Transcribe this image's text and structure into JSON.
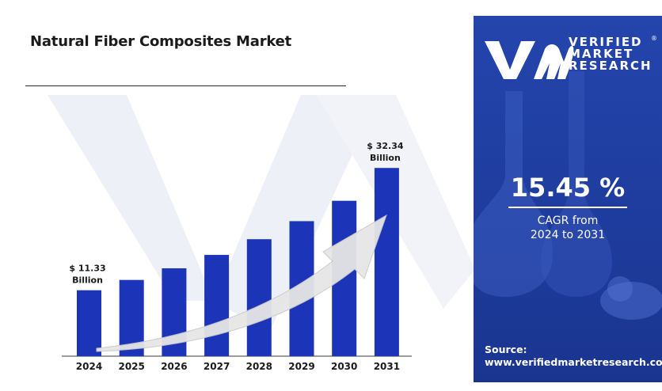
{
  "title": "Natural Fiber Composites Market",
  "brand": {
    "line1": "VERIFIED",
    "line2": "MARKET",
    "line3": "RESEARCH",
    "registered": "®"
  },
  "cagr": {
    "value": "15.45 %",
    "label_line1": "CAGR from",
    "label_line2": "2024 to 2031"
  },
  "source": {
    "label": "Source:",
    "url": "www.verifiedmarketresearch.com"
  },
  "colors": {
    "bar": "#1c35b8",
    "panel": "#1f3ea0",
    "arrow": "#e6e6e6"
  },
  "chart_data": {
    "type": "bar",
    "categories": [
      "2024",
      "2025",
      "2026",
      "2027",
      "2028",
      "2029",
      "2030",
      "2031"
    ],
    "values": [
      11.33,
      13.1,
      15.1,
      17.4,
      20.1,
      23.2,
      26.7,
      32.34
    ],
    "data_labels": [
      {
        "index": 0,
        "line1": "$ 11.33",
        "line2": "Billion"
      },
      {
        "index": 7,
        "line1": "$ 32.34",
        "line2": "Billion"
      }
    ],
    "unit": "Billion USD",
    "ylim": [
      0,
      34
    ],
    "grid": false,
    "legend": "none",
    "trend_arrow": true
  }
}
